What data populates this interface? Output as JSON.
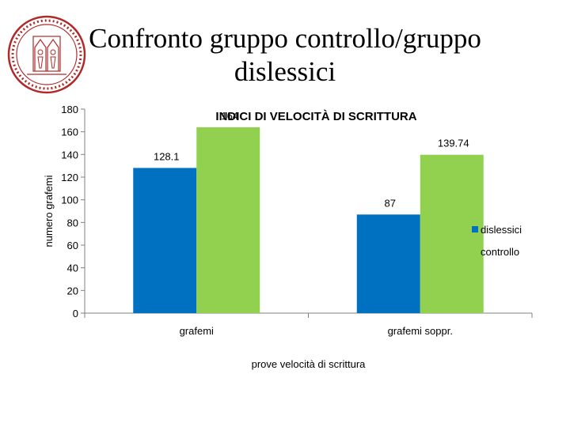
{
  "slide": {
    "title_line1": "Confronto gruppo controllo/gruppo",
    "title_line2": "dislessici",
    "logo": "university-seal-logo"
  },
  "chart_data": {
    "type": "bar",
    "title": "INDICI DI VELOCITÀ DI SCRITTURA",
    "xlabel": "prove velocità di scrittura",
    "ylabel": "numero grafemi",
    "categories": [
      "grafemi",
      "grafemi soppr."
    ],
    "series": [
      {
        "name": "dislessici",
        "values": [
          128.1,
          87
        ],
        "labels": [
          "128.1",
          "87"
        ],
        "color": "#0070c0"
      },
      {
        "name": "controllo",
        "values": [
          164,
          139.74
        ],
        "labels": [
          "164",
          "139.74"
        ],
        "color": "#92d050"
      }
    ],
    "ylim": [
      0,
      180
    ],
    "yticks": [
      0,
      20,
      40,
      60,
      80,
      100,
      120,
      140,
      160,
      180
    ],
    "grid": false,
    "legend_position": "right"
  }
}
